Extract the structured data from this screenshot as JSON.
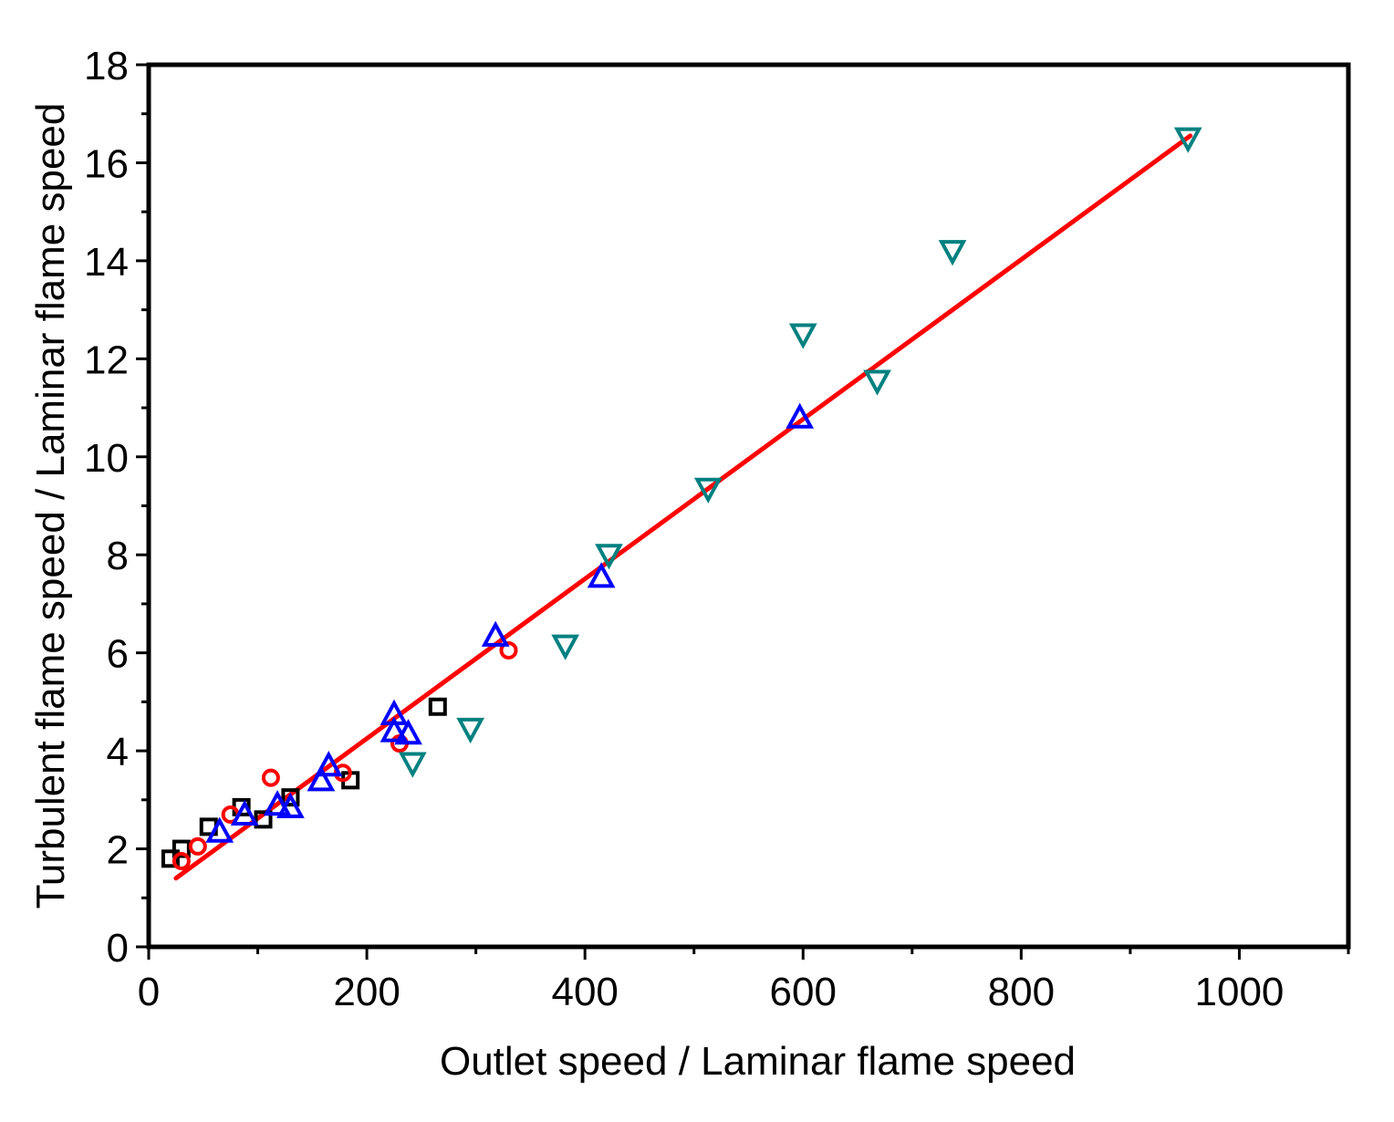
{
  "chart_data": {
    "type": "scatter",
    "title": "",
    "xlabel": "Outlet speed / Laminar flame speed",
    "ylabel": "Turbulent flame speed / Laminar flame speed",
    "xlim": [
      0,
      1100
    ],
    "ylim": [
      0,
      18
    ],
    "x_ticks": [
      0,
      200,
      400,
      600,
      800,
      1000
    ],
    "x_tick_labels": [
      "0",
      "200",
      "400",
      "600",
      "800",
      "1000"
    ],
    "x_minor_ticks": [
      100,
      300,
      500,
      700,
      900,
      1100
    ],
    "y_ticks": [
      0,
      2,
      4,
      6,
      8,
      10,
      12,
      14,
      16,
      18
    ],
    "y_tick_labels": [
      "0",
      "2",
      "4",
      "6",
      "8",
      "10",
      "12",
      "14",
      "16",
      "18"
    ],
    "y_minor_ticks": [
      1,
      3,
      5,
      7,
      9,
      11,
      13,
      15,
      17
    ],
    "grid": false,
    "series": [
      {
        "name": "squares",
        "marker": "square",
        "color": "#000000",
        "points": [
          [
            20,
            1.8
          ],
          [
            30,
            2.0
          ],
          [
            55,
            2.45
          ],
          [
            85,
            2.85
          ],
          [
            105,
            2.6
          ],
          [
            130,
            3.05
          ],
          [
            185,
            3.4
          ],
          [
            265,
            4.9
          ]
        ]
      },
      {
        "name": "circles",
        "marker": "circle",
        "color": "#ff0000",
        "points": [
          [
            30,
            1.75
          ],
          [
            45,
            2.05
          ],
          [
            75,
            2.7
          ],
          [
            112,
            3.45
          ],
          [
            178,
            3.55
          ],
          [
            230,
            4.15
          ],
          [
            330,
            6.05
          ]
        ]
      },
      {
        "name": "triangles-up",
        "marker": "triangle-up",
        "color": "#0000ff",
        "points": [
          [
            65,
            2.35
          ],
          [
            88,
            2.7
          ],
          [
            118,
            2.9
          ],
          [
            130,
            2.85
          ],
          [
            158,
            3.4
          ],
          [
            165,
            3.7
          ],
          [
            225,
            4.4
          ],
          [
            225,
            4.75
          ],
          [
            238,
            4.35
          ],
          [
            318,
            6.35
          ],
          [
            415,
            7.55
          ],
          [
            597,
            10.8
          ]
        ]
      },
      {
        "name": "triangles-down",
        "marker": "triangle-down",
        "color": "#008080",
        "points": [
          [
            242,
            3.75
          ],
          [
            295,
            4.45
          ],
          [
            382,
            6.15
          ],
          [
            422,
            8.0
          ],
          [
            513,
            9.35
          ],
          [
            600,
            12.5
          ],
          [
            668,
            11.55
          ],
          [
            737,
            14.2
          ],
          [
            953,
            16.5
          ]
        ]
      }
    ],
    "fit_line": {
      "name": "linear fit",
      "color": "#ff0000",
      "x": [
        25,
        955
      ],
      "y": [
        1.4,
        16.55
      ]
    }
  }
}
